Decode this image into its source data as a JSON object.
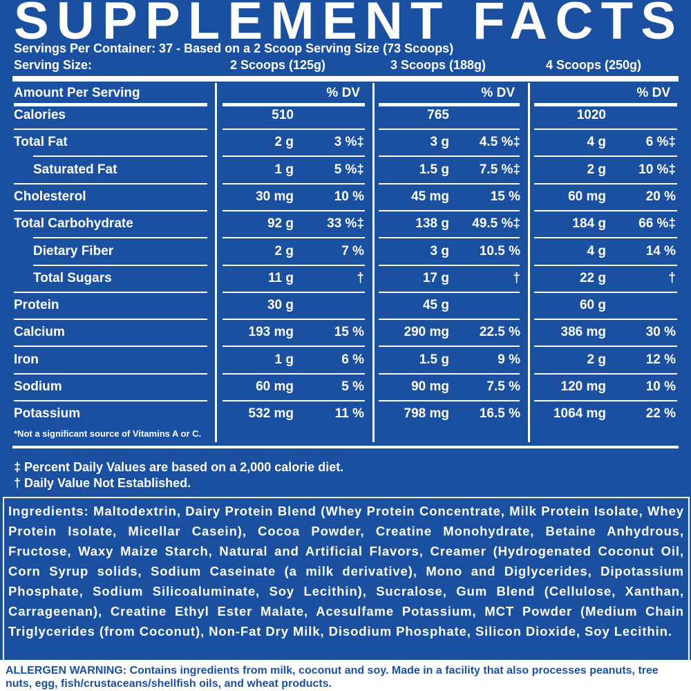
{
  "header": {
    "title": "SUPPLEMENT FACTS",
    "servings_per_container": "Servings Per Container: 37 - Based on a 2 Scoop Serving Size (73 Scoops)",
    "serving_size_label": "Serving Size:",
    "serving_sizes": [
      "2 Scoops (125g)",
      "3 Scoops (188g)",
      "4 Scoops (250g)"
    ]
  },
  "table": {
    "amount_header": "Amount Per Serving",
    "dv_headers": [
      "% DV",
      "% DV",
      "% DV"
    ],
    "rows": [
      {
        "name": "Calories",
        "indent": false,
        "cells": [
          [
            "510",
            null
          ],
          [
            "765",
            null
          ],
          [
            "1020",
            null
          ]
        ]
      },
      {
        "name": "Total Fat",
        "indent": false,
        "cells": [
          [
            "2 g",
            "3 %‡"
          ],
          [
            "3 g",
            "4.5 %‡"
          ],
          [
            "4 g",
            "6 %‡"
          ]
        ]
      },
      {
        "name": "Saturated Fat",
        "indent": true,
        "cells": [
          [
            "1 g",
            "5 %‡"
          ],
          [
            "1.5 g",
            "7.5 %‡"
          ],
          [
            "2 g",
            "10 %‡"
          ]
        ]
      },
      {
        "name": "Cholesterol",
        "indent": false,
        "cells": [
          [
            "30 mg",
            "10 %"
          ],
          [
            "45 mg",
            "15 %"
          ],
          [
            "60 mg",
            "20 %"
          ]
        ]
      },
      {
        "name": "Total Carbohydrate",
        "indent": false,
        "cells": [
          [
            "92 g",
            "33 %‡"
          ],
          [
            "138 g",
            "49.5 %‡"
          ],
          [
            "184 g",
            "66 %‡"
          ]
        ]
      },
      {
        "name": "Dietary Fiber",
        "indent": true,
        "cells": [
          [
            "2 g",
            "7 %"
          ],
          [
            "3 g",
            "10.5 %"
          ],
          [
            "4 g",
            "14 %"
          ]
        ]
      },
      {
        "name": "Total Sugars",
        "indent": true,
        "cells": [
          [
            "11 g",
            "†"
          ],
          [
            "17 g",
            "†"
          ],
          [
            "22 g",
            "†"
          ]
        ]
      },
      {
        "name": "Protein",
        "indent": false,
        "cells": [
          [
            "30 g",
            null
          ],
          [
            "45 g",
            null
          ],
          [
            "60 g",
            null
          ]
        ]
      },
      {
        "name": "Calcium",
        "indent": false,
        "cells": [
          [
            "193 mg",
            "15 %"
          ],
          [
            "290 mg",
            "22.5 %"
          ],
          [
            "386 mg",
            "30 %"
          ]
        ]
      },
      {
        "name": "Iron",
        "indent": false,
        "cells": [
          [
            "1 g",
            "6 %"
          ],
          [
            "1.5 g",
            "9 %"
          ],
          [
            "2 g",
            "12 %"
          ]
        ]
      },
      {
        "name": "Sodium",
        "indent": false,
        "cells": [
          [
            "60 mg",
            "5 %"
          ],
          [
            "90 mg",
            "7.5 %"
          ],
          [
            "120 mg",
            "10 %"
          ]
        ]
      },
      {
        "name": "Potassium",
        "indent": false,
        "cells": [
          [
            "532 mg",
            "11 %"
          ],
          [
            "798 mg",
            "16.5 %"
          ],
          [
            "1064 mg",
            "22 %"
          ]
        ]
      }
    ],
    "footnote": "*Not a significant source of Vitamins A or C."
  },
  "notes": [
    "‡ Percent Daily Values are based on a 2,000 calorie diet.",
    "† Daily Value Not Established."
  ],
  "ingredients": {
    "label": "Ingredients:",
    "text": "Maltodextrin, Dairy Protein Blend (Whey Protein Concentrate, Milk Protein Isolate, Whey Protein Isolate, Micellar Casein), Cocoa Powder, Creatine Monohydrate, Betaine Anhydrous, Fructose, Waxy Maize Starch, Natural and Artificial Flavors, Creamer (Hydrogenated Coconut Oil, Corn Syrup solids, Sodium Caseinate (a milk derivative), Mono and Diglycerides, Dipotassium Phosphate, Sodium Silicoaluminate, Soy Lecithin), Sucralose, Gum Blend (Cellulose, Xanthan, Carrageenan), Creatine Ethyl Ester Malate, Acesulfame Potassium, MCT Powder (Medium Chain Triglycerides (from Coconut), Non-Fat Dry Milk, Disodium Phosphate, Silicon Dioxide, Soy Lecithin."
  },
  "allergen": {
    "label": "ALLERGEN WARNING:",
    "warning": "Contains ingredients from milk, coconut and soy.",
    "facility": "Made in a facility that also processes peanuts, tree nuts, egg, fish/crustaceans/shellfish oils, and wheat products."
  }
}
